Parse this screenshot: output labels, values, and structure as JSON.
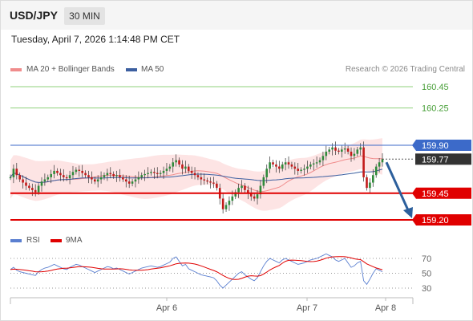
{
  "header": {
    "symbol": "USD/JPY",
    "interval": "30 MIN"
  },
  "timestamp": "Tuesday, April 7, 2026 1:14:48 PM CET",
  "copyright": "Research © 2026 Trading Central",
  "colors": {
    "resistance": "#3c6ac9",
    "support": "#e00000",
    "target_green": "#8fd17b",
    "current_price_box": "#333333",
    "ma20": "#f08c8c",
    "ma50": "#3c5fa0",
    "bollinger_fill": "#fde1e1",
    "rsi": "#5a7fd0",
    "rsi_ma": "#e00000",
    "arrow": "#2c5f9c"
  },
  "chart_data": [
    {
      "type": "line",
      "subtype": "candlestick",
      "pair": "USD/JPY",
      "timeframe": "30 MIN",
      "legend": [
        {
          "name": "MA 20 + Bollinger Bands",
          "color": "#f08c8c"
        },
        {
          "name": "MA 50",
          "color": "#3c5fa0"
        }
      ],
      "x_ticks": [
        "Apr 6",
        "Apr 7",
        "Apr 8"
      ],
      "ylim": [
        159.05,
        160.55
      ],
      "levels": [
        {
          "label": "160.45",
          "value": 160.45,
          "kind": "target",
          "color": "#8fd17b"
        },
        {
          "label": "160.25",
          "value": 160.25,
          "kind": "target",
          "color": "#8fd17b"
        },
        {
          "label": "159.90",
          "value": 159.9,
          "kind": "resistance",
          "color": "#3c6ac9"
        },
        {
          "label": "159.77",
          "value": 159.77,
          "kind": "last price",
          "color": "#333333"
        },
        {
          "label": "159.45",
          "value": 159.45,
          "kind": "support",
          "color": "#e00000"
        },
        {
          "label": "159.20",
          "value": 159.2,
          "kind": "support",
          "color": "#e00000"
        }
      ],
      "arrow": {
        "from": 159.77,
        "to": 159.2,
        "direction": "down"
      },
      "close": [
        159.6,
        159.68,
        159.62,
        159.58,
        159.55,
        159.52,
        159.5,
        159.48,
        159.46,
        159.52,
        159.56,
        159.58,
        159.6,
        159.63,
        159.66,
        159.64,
        159.62,
        159.6,
        159.59,
        159.62,
        159.65,
        159.67,
        159.66,
        159.64,
        159.62,
        159.6,
        159.58,
        159.56,
        159.58,
        159.6,
        159.62,
        159.64,
        159.63,
        159.61,
        159.62,
        159.6,
        159.58,
        159.56,
        159.54,
        159.56,
        159.58,
        159.6,
        159.62,
        159.63,
        159.64,
        159.65,
        159.64,
        159.63,
        159.64,
        159.66,
        159.68,
        159.7,
        159.74,
        159.76,
        159.72,
        159.68,
        159.7,
        159.66,
        159.64,
        159.62,
        159.6,
        159.58,
        159.57,
        159.56,
        159.55,
        159.54,
        159.5,
        159.4,
        159.3,
        159.34,
        159.38,
        159.42,
        159.46,
        159.5,
        159.52,
        159.48,
        159.45,
        159.42,
        159.4,
        159.44,
        159.52,
        159.6,
        159.68,
        159.74,
        159.72,
        159.7,
        159.68,
        159.72,
        159.74,
        159.72,
        159.7,
        159.68,
        159.66,
        159.67,
        159.68,
        159.7,
        159.72,
        159.73,
        159.74,
        159.76,
        159.8,
        159.84,
        159.86,
        159.88,
        159.85,
        159.84,
        159.86,
        159.87,
        159.84,
        159.8,
        159.82,
        159.86,
        159.88,
        159.6,
        159.5,
        159.55,
        159.62,
        159.7,
        159.74,
        159.77
      ],
      "series": [
        {
          "name": "RSI",
          "color": "#5a7fd0",
          "values": [
            55,
            58,
            54,
            52,
            51,
            50,
            49,
            48,
            47,
            52,
            55,
            57,
            58,
            60,
            62,
            60,
            58,
            56,
            55,
            58,
            60,
            62,
            61,
            59,
            57,
            55,
            53,
            51,
            53,
            55,
            57,
            59,
            58,
            56,
            57,
            55,
            53,
            51,
            49,
            51,
            53,
            55,
            57,
            58,
            59,
            60,
            59,
            58,
            59,
            61,
            63,
            65,
            70,
            72,
            66,
            60,
            62,
            56,
            54,
            52,
            50,
            48,
            47,
            46,
            45,
            44,
            40,
            34,
            30,
            34,
            38,
            42,
            46,
            50,
            52,
            48,
            45,
            42,
            40,
            44,
            52,
            60,
            66,
            70,
            68,
            66,
            64,
            68,
            70,
            68,
            66,
            64,
            62,
            63,
            64,
            66,
            68,
            69,
            70,
            72,
            74,
            76,
            74,
            72,
            68,
            66,
            68,
            70,
            64,
            58,
            60,
            64,
            66,
            40,
            35,
            42,
            50,
            56,
            54,
            52
          ]
        },
        {
          "name": "9MA",
          "color": "#e00000",
          "values": [
            55,
            55.5,
            55.4,
            55,
            54.5,
            54,
            53.4,
            52.8,
            52.1,
            51.8,
            52,
            52.4,
            53,
            53.8,
            54.9,
            55.7,
            56.3,
            56.7,
            56.8,
            57.3,
            57.8,
            58.4,
            58.9,
            58.9,
            58.6,
            58.3,
            58,
            57.3,
            56.6,
            56,
            55.7,
            55.6,
            55.6,
            55.6,
            55.8,
            56,
            55.8,
            55.3,
            54.6,
            54.2,
            54,
            54,
            54.1,
            54.4,
            54.9,
            55.7,
            56.3,
            56.8,
            57.4,
            58.2,
            59.1,
            60.1,
            61.4,
            62.8,
            63.4,
            63.6,
            63.8,
            63.6,
            63.1,
            62.4,
            61.4,
            60,
            58.4,
            56.8,
            55.3,
            53.8,
            52,
            49.7,
            47.1,
            44.9,
            43.1,
            41.9,
            41.6,
            41.9,
            43.1,
            44.7,
            46.1,
            46.6,
            46.3,
            46.1,
            46.8,
            48.8,
            51.5,
            54.4,
            56.7,
            58.7,
            60.5,
            63.5,
            66.1,
            67.4,
            67.7,
            67.6,
            67.3,
            67,
            66.4,
            65.9,
            65.7,
            65.8,
            66.3,
            67.4,
            68.8,
            70.3,
            71.4,
            72,
            72.3,
            72.5,
            72.5,
            72.3,
            71.6,
            70.7,
            69.5,
            68.8,
            68.4,
            65.6,
            62.6,
            60.7,
            58.9,
            57.1,
            55.9,
            54.8
          ]
        },
        {
          "name": "MA 20",
          "color": "#f08c8c"
        },
        {
          "name": "MA 50",
          "color": "#3c5fa0"
        }
      ]
    },
    {
      "type": "line",
      "indicator": "RSI",
      "legend": [
        {
          "name": "RSI",
          "color": "#5a7fd0"
        },
        {
          "name": "9MA",
          "color": "#e00000"
        }
      ],
      "y_ticks": [
        "70",
        "50",
        "30"
      ],
      "ylim": [
        20,
        80
      ]
    }
  ]
}
